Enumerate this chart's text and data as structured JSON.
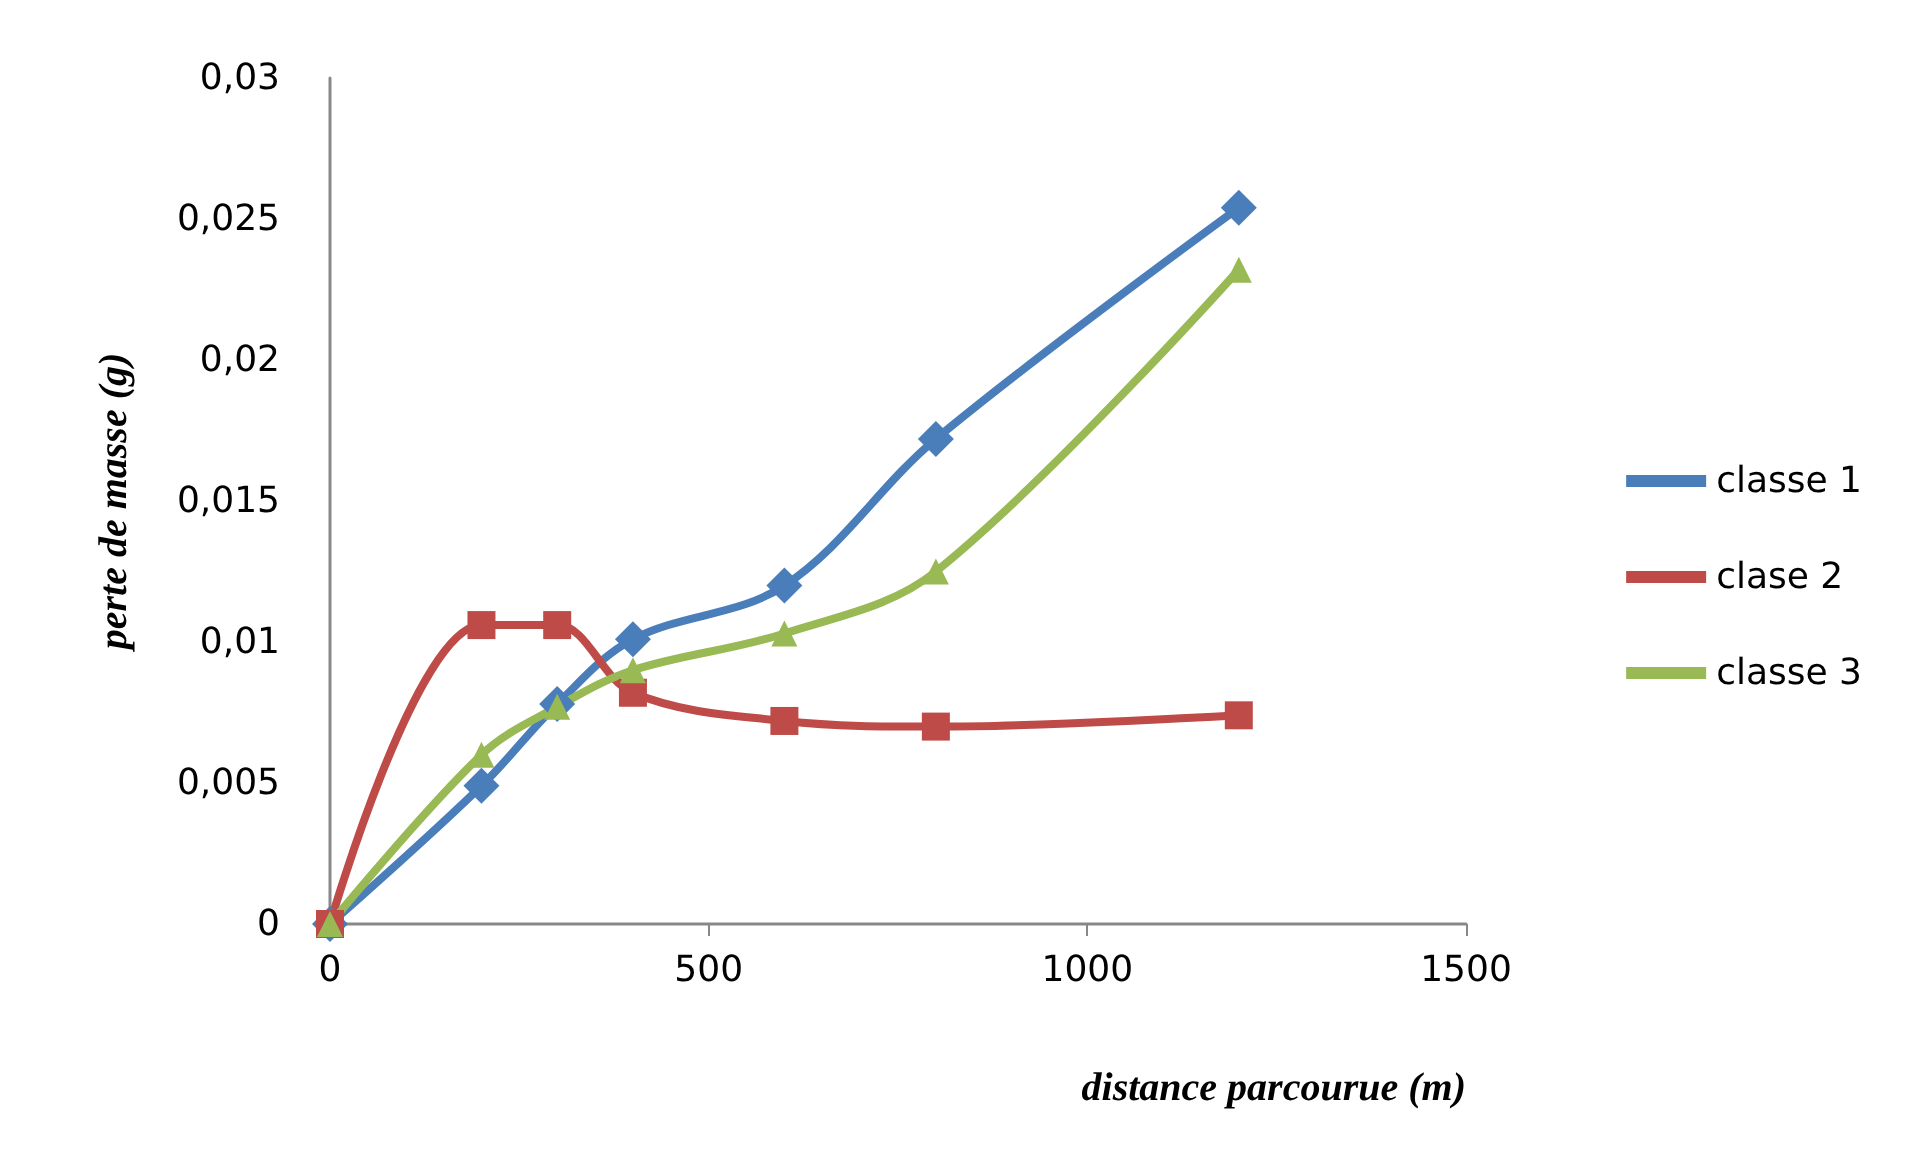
{
  "chart_data": {
    "type": "line",
    "xlabel": "distance parcourue (m)",
    "ylabel": "perte de masse (g)",
    "x": [
      0,
      200,
      300,
      400,
      600,
      800,
      1200
    ],
    "series": [
      {
        "name": "classe 1",
        "color": "#4a7ebb",
        "marker": "diamond",
        "values": [
          0,
          0.0049,
          0.0078,
          0.0101,
          0.012,
          0.0172,
          0.0254
        ]
      },
      {
        "name": "clase 2",
        "color": "#be4b48",
        "marker": "square",
        "values": [
          0,
          0.0106,
          0.0106,
          0.0082,
          0.0072,
          0.007,
          0.0074
        ]
      },
      {
        "name": "classe 3",
        "color": "#98b954",
        "marker": "triangle",
        "values": [
          0,
          0.006,
          0.0077,
          0.009,
          0.0103,
          0.0125,
          0.0232
        ]
      }
    ],
    "xlim": [
      0,
      1500
    ],
    "xticks": [
      0,
      500,
      1000,
      1500
    ],
    "ylim": [
      0,
      0.03
    ],
    "yticks": [
      {
        "value": 0,
        "label": "0"
      },
      {
        "value": 0.005,
        "label": "0,005"
      },
      {
        "value": 0.01,
        "label": "0,01"
      },
      {
        "value": 0.015,
        "label": "0,015"
      },
      {
        "value": 0.02,
        "label": "0,02"
      },
      {
        "value": 0.025,
        "label": "0,025"
      },
      {
        "value": 0.03,
        "label": "0,03"
      }
    ],
    "grid": false,
    "legend": "right",
    "line_style": "solid"
  }
}
